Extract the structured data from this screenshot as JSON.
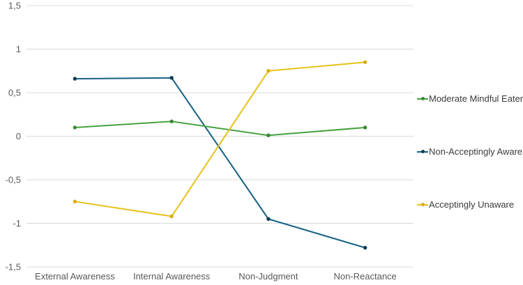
{
  "chart_data": {
    "type": "line",
    "title": "",
    "xlabel": "",
    "ylabel": "",
    "categories": [
      "External Awareness",
      "Internal Awareness",
      "Non-Judgment",
      "Non-Reactance"
    ],
    "series": [
      {
        "name": "Moderate Mindful Eater",
        "color": "#47A23F",
        "marker_color": "#3A8A34",
        "values": [
          0.1,
          0.17,
          0.01,
          0.1
        ]
      },
      {
        "name": "Non-Acceptingly Aware",
        "color": "#156082",
        "marker_color": "#0D3D55",
        "values": [
          0.66,
          0.67,
          -0.95,
          -1.28
        ]
      },
      {
        "name": "Acceptingly Unaware",
        "color": "#E6C119",
        "marker_color": "#D8AC12",
        "values": [
          -0.75,
          -0.92,
          0.75,
          0.85
        ]
      }
    ],
    "y_axis": {
      "min": -1.5,
      "max": 1.5,
      "step": 0.5,
      "tick_values": [
        1.5,
        1,
        0.5,
        0,
        -0.5,
        -1,
        -1.5
      ],
      "tick_labels": [
        "1,5",
        "1",
        "0,5",
        "0",
        "-0,5",
        "-1",
        "-1,5"
      ]
    },
    "grid": true,
    "legend_position": "right",
    "draw_order": [
      1,
      0,
      2
    ],
    "colors": {
      "gridline": "#D9D9D9",
      "axis_text": "#595959",
      "legend_text": "#3B3B3B",
      "background": "#FFFFFF"
    }
  }
}
